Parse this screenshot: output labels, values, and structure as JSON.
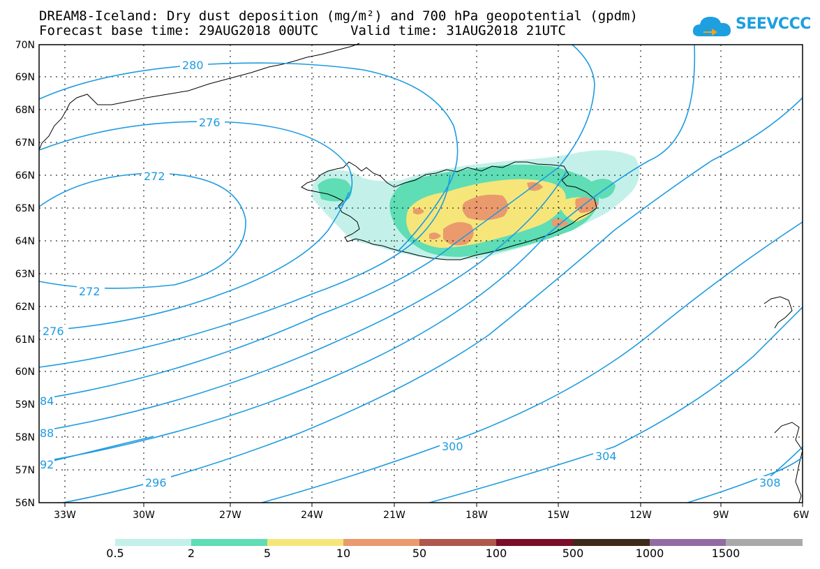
{
  "header": {
    "title_line1": "DREAM8-Iceland: Dry dust deposition (mg/m²) and 700 hPa geopotential (gpdm)",
    "title_line2": "Forecast base time: 29AUG2018 00UTC    Valid time: 31AUG2018 21UTC"
  },
  "logo": {
    "text": "SEEVCCC",
    "icon": "cloud-icon",
    "color": "#1d9fe0"
  },
  "map": {
    "lat_labels": [
      "70N",
      "69N",
      "68N",
      "67N",
      "66N",
      "65N",
      "64N",
      "63N",
      "62N",
      "61N",
      "60N",
      "59N",
      "58N",
      "57N",
      "56N"
    ],
    "lon_labels": [
      "33W",
      "30W",
      "27W",
      "24W",
      "21W",
      "18W",
      "15W",
      "12W",
      "9W",
      "6W"
    ],
    "contour_color": "#1e9be0",
    "contour_labels": [
      "280",
      "276",
      "272",
      "272",
      "276",
      "84",
      "88",
      "92",
      "296",
      "300",
      "304",
      "308"
    ]
  },
  "colorbar": {
    "colors": [
      "#c3f1ea",
      "#5fddb5",
      "#f6e67a",
      "#ea9a6d",
      "#b0584c",
      "#7a0d27",
      "#3e2a1a",
      "#926ba3",
      "#a9a9a9"
    ],
    "labels": [
      "0.5",
      "2",
      "5",
      "10",
      "50",
      "100",
      "500",
      "1000",
      "1500"
    ]
  }
}
